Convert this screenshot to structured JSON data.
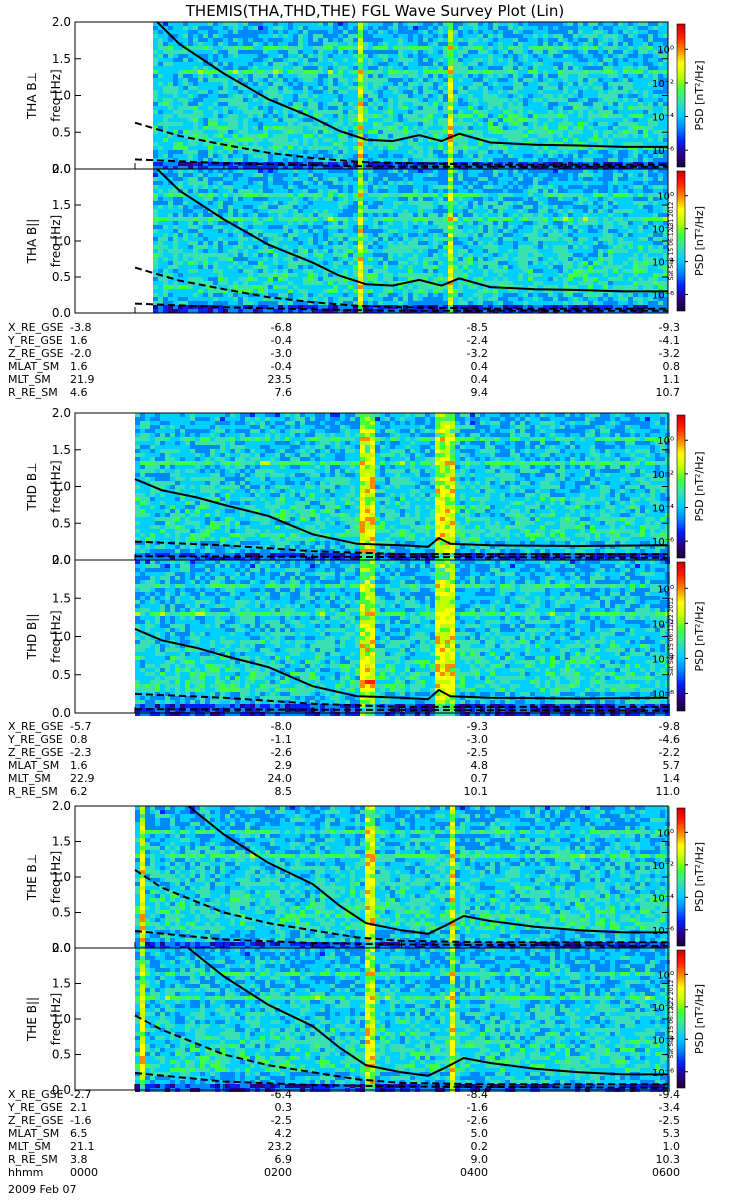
{
  "title": "THEMIS(THA,THD,THE) FGL Wave Survey Plot (Lin)",
  "colors": {
    "colormap": [
      "#1a0033",
      "#2a008c",
      "#0022ff",
      "#0088ff",
      "#00d0ff",
      "#3ae0b0",
      "#40ff40",
      "#c0ff00",
      "#ffff00",
      "#ff8800",
      "#ff2000",
      "#cc0000"
    ],
    "curve": "#000000",
    "background": "#ffffff"
  },
  "chart_data": [
    {
      "type": "heatmap",
      "panel": "THA Bperp",
      "ylabel": "THA B⊥",
      "ylabel2": "freq [Hz]",
      "ylim": [
        0.0,
        2.0
      ],
      "yticks": [
        "0.0",
        "0.5",
        "1.0",
        "1.5",
        "2.0"
      ],
      "colorbar_label": "PSD [nT²/Hz]",
      "colorbar_ticks": [
        "10⁰",
        "10⁻²",
        "10⁻⁴",
        "10⁻⁶"
      ],
      "colorbar_range_log10": [
        -7,
        1.5
      ],
      "data_start_hour": 0.2,
      "bursts": [
        [
          2.5,
          2.56
        ],
        [
          3.48,
          3.55
        ]
      ],
      "solid_curve": [
        [
          0.25,
          2.0
        ],
        [
          0.5,
          1.7
        ],
        [
          1.0,
          1.3
        ],
        [
          1.5,
          0.95
        ],
        [
          2.0,
          0.7
        ],
        [
          2.3,
          0.52
        ],
        [
          2.6,
          0.4
        ],
        [
          2.9,
          0.38
        ],
        [
          3.2,
          0.46
        ],
        [
          3.45,
          0.38
        ],
        [
          3.65,
          0.48
        ],
        [
          4.0,
          0.36
        ],
        [
          4.5,
          0.33
        ],
        [
          5.0,
          0.32
        ],
        [
          5.5,
          0.3
        ],
        [
          6.0,
          0.3
        ]
      ],
      "dashed_curve": [
        [
          0.0,
          0.63
        ],
        [
          0.5,
          0.45
        ],
        [
          1.0,
          0.33
        ],
        [
          1.5,
          0.22
        ],
        [
          2.0,
          0.15
        ],
        [
          2.5,
          0.1
        ],
        [
          3.0,
          0.08
        ],
        [
          4.0,
          0.06
        ],
        [
          6.0,
          0.06
        ]
      ],
      "dashed_low": [
        [
          0.0,
          0.13
        ],
        [
          1.0,
          0.08
        ],
        [
          2.0,
          0.05
        ],
        [
          3.0,
          0.03
        ],
        [
          6.0,
          0.03
        ]
      ]
    },
    {
      "type": "heatmap",
      "panel": "THA Bpar",
      "ylabel": "THA B||",
      "ylabel2": "freq [Hz]",
      "ylim": [
        0.0,
        2.0
      ],
      "yticks": [
        "0.0",
        "0.5",
        "1.0",
        "1.5",
        "2.0"
      ],
      "colorbar_label": "PSD [nT²/Hz]",
      "colorbar_ticks": [
        "10⁰",
        "10⁻²",
        "10⁻⁴",
        "10⁻⁶"
      ],
      "colorbar_range_log10": [
        -7,
        1.5
      ],
      "data_start_hour": 0.2,
      "bursts": [
        [
          2.5,
          2.56
        ],
        [
          3.48,
          3.55
        ]
      ],
      "solid_curve": [
        [
          0.25,
          2.0
        ],
        [
          0.5,
          1.7
        ],
        [
          1.0,
          1.3
        ],
        [
          1.5,
          0.95
        ],
        [
          2.0,
          0.7
        ],
        [
          2.3,
          0.52
        ],
        [
          2.6,
          0.4
        ],
        [
          2.9,
          0.38
        ],
        [
          3.2,
          0.46
        ],
        [
          3.45,
          0.38
        ],
        [
          3.65,
          0.48
        ],
        [
          4.0,
          0.36
        ],
        [
          4.5,
          0.33
        ],
        [
          5.0,
          0.32
        ],
        [
          5.5,
          0.3
        ],
        [
          6.0,
          0.3
        ]
      ],
      "dashed_curve": [
        [
          0.0,
          0.63
        ],
        [
          0.5,
          0.45
        ],
        [
          1.0,
          0.33
        ],
        [
          1.5,
          0.22
        ],
        [
          2.0,
          0.15
        ],
        [
          2.5,
          0.1
        ],
        [
          3.0,
          0.08
        ],
        [
          4.0,
          0.06
        ],
        [
          6.0,
          0.06
        ]
      ],
      "dashed_low": [
        [
          0.0,
          0.13
        ],
        [
          1.0,
          0.08
        ],
        [
          2.0,
          0.05
        ],
        [
          3.0,
          0.03
        ],
        [
          6.0,
          0.03
        ]
      ],
      "timestamp": "Sat Sep 15 06:12:31 2012"
    },
    {
      "type": "heatmap",
      "panel": "THD Bperp",
      "ylabel": "THD B⊥",
      "ylabel2": "freq [Hz]",
      "ylim": [
        0.0,
        2.0
      ],
      "yticks": [
        "0.0",
        "0.5",
        "1.0",
        "1.5",
        "2.0"
      ],
      "colorbar_label": "PSD [nT²/Hz]",
      "colorbar_ticks": [
        "10⁰",
        "10⁻²",
        "10⁻⁴",
        "10⁻⁶"
      ],
      "colorbar_range_log10": [
        -7,
        1.5
      ],
      "data_start_hour": 0.0,
      "bursts": [
        [
          2.52,
          2.66
        ],
        [
          3.35,
          3.55
        ]
      ],
      "solid_curve": [
        [
          0.0,
          1.1
        ],
        [
          0.3,
          0.95
        ],
        [
          0.7,
          0.85
        ],
        [
          1.0,
          0.75
        ],
        [
          1.5,
          0.6
        ],
        [
          2.0,
          0.35
        ],
        [
          2.5,
          0.22
        ],
        [
          3.0,
          0.2
        ],
        [
          3.3,
          0.18
        ],
        [
          3.42,
          0.3
        ],
        [
          3.55,
          0.22
        ],
        [
          4.0,
          0.2
        ],
        [
          5.0,
          0.19
        ],
        [
          6.0,
          0.2
        ]
      ],
      "dashed_curve": [
        [
          0.0,
          0.25
        ],
        [
          1.0,
          0.2
        ],
        [
          2.0,
          0.12
        ],
        [
          3.0,
          0.08
        ],
        [
          6.0,
          0.08
        ]
      ],
      "dashed_low": [
        [
          0.0,
          0.05
        ],
        [
          6.0,
          0.03
        ]
      ]
    },
    {
      "type": "heatmap",
      "panel": "THD Bpar",
      "ylabel": "THD B||",
      "ylabel2": "freq [Hz]",
      "ylim": [
        0.0,
        2.0
      ],
      "yticks": [
        "0.0",
        "0.5",
        "1.0",
        "1.5",
        "2.0"
      ],
      "colorbar_label": "PSD [nT²/Hz]",
      "colorbar_ticks": [
        "10⁰",
        "10⁻²",
        "10⁻⁴",
        "10⁻⁶"
      ],
      "colorbar_range_log10": [
        -7,
        1.5
      ],
      "data_start_hour": 0.0,
      "bursts": [
        [
          2.52,
          2.66
        ],
        [
          3.35,
          3.55
        ]
      ],
      "solid_curve": [
        [
          0.0,
          1.1
        ],
        [
          0.3,
          0.95
        ],
        [
          0.7,
          0.85
        ],
        [
          1.0,
          0.75
        ],
        [
          1.5,
          0.6
        ],
        [
          2.0,
          0.35
        ],
        [
          2.5,
          0.22
        ],
        [
          3.0,
          0.2
        ],
        [
          3.3,
          0.18
        ],
        [
          3.42,
          0.3
        ],
        [
          3.55,
          0.22
        ],
        [
          4.0,
          0.2
        ],
        [
          5.0,
          0.19
        ],
        [
          6.0,
          0.2
        ]
      ],
      "dashed_curve": [
        [
          0.0,
          0.25
        ],
        [
          1.0,
          0.2
        ],
        [
          2.0,
          0.12
        ],
        [
          3.0,
          0.08
        ],
        [
          6.0,
          0.08
        ]
      ],
      "dashed_low": [
        [
          0.0,
          0.05
        ],
        [
          6.0,
          0.03
        ]
      ],
      "timestamp": "Sat Sep 15 06:12:22 2012"
    },
    {
      "type": "heatmap",
      "panel": "THE Bperp",
      "ylabel": "THE B⊥",
      "ylabel2": "freq [Hz]",
      "ylim": [
        0.0,
        2.0
      ],
      "yticks": [
        "0.0",
        "0.5",
        "1.0",
        "1.5",
        "2.0"
      ],
      "colorbar_label": "PSD [nT²/Hz]",
      "colorbar_ticks": [
        "10⁰",
        "10⁻²",
        "10⁻⁴",
        "10⁻⁶"
      ],
      "colorbar_range_log10": [
        -7,
        1.5
      ],
      "data_start_hour": 0.0,
      "bursts": [
        [
          0.02,
          0.1
        ],
        [
          2.58,
          2.65
        ],
        [
          3.5,
          3.58
        ]
      ],
      "solid_curve": [
        [
          0.6,
          2.0
        ],
        [
          1.0,
          1.6
        ],
        [
          1.5,
          1.2
        ],
        [
          2.0,
          0.9
        ],
        [
          2.3,
          0.6
        ],
        [
          2.6,
          0.35
        ],
        [
          3.0,
          0.25
        ],
        [
          3.3,
          0.2
        ],
        [
          3.5,
          0.32
        ],
        [
          3.7,
          0.45
        ],
        [
          4.0,
          0.38
        ],
        [
          4.5,
          0.3
        ],
        [
          5.0,
          0.25
        ],
        [
          5.5,
          0.22
        ],
        [
          6.0,
          0.22
        ]
      ],
      "dashed_curve": [
        [
          0.0,
          1.1
        ],
        [
          0.3,
          0.85
        ],
        [
          0.7,
          0.65
        ],
        [
          1.0,
          0.5
        ],
        [
          1.5,
          0.35
        ],
        [
          2.0,
          0.25
        ],
        [
          2.5,
          0.15
        ],
        [
          3.0,
          0.1
        ],
        [
          4.0,
          0.08
        ],
        [
          6.0,
          0.08
        ]
      ],
      "dashed_low": [
        [
          0.0,
          0.24
        ],
        [
          1.0,
          0.12
        ],
        [
          2.0,
          0.07
        ],
        [
          3.0,
          0.05
        ],
        [
          6.0,
          0.03
        ]
      ]
    },
    {
      "type": "heatmap",
      "panel": "THE Bpar",
      "ylabel": "THE B||",
      "ylabel2": "freq [Hz]",
      "ylim": [
        0.0,
        2.0
      ],
      "yticks": [
        "0.0",
        "0.5",
        "1.0",
        "1.5",
        "2.0"
      ],
      "colorbar_label": "PSD [nT²/Hz]",
      "colorbar_ticks": [
        "10⁰",
        "10⁻²",
        "10⁻⁴",
        "10⁻⁶"
      ],
      "colorbar_range_log10": [
        -7,
        1.5
      ],
      "data_start_hour": 0.0,
      "bursts": [
        [
          0.02,
          0.1
        ],
        [
          2.58,
          2.65
        ],
        [
          3.5,
          3.58
        ]
      ],
      "solid_curve": [
        [
          0.6,
          2.0
        ],
        [
          1.0,
          1.6
        ],
        [
          1.5,
          1.2
        ],
        [
          2.0,
          0.9
        ],
        [
          2.3,
          0.6
        ],
        [
          2.6,
          0.35
        ],
        [
          3.0,
          0.25
        ],
        [
          3.3,
          0.2
        ],
        [
          3.5,
          0.32
        ],
        [
          3.7,
          0.45
        ],
        [
          4.0,
          0.38
        ],
        [
          4.5,
          0.3
        ],
        [
          5.0,
          0.25
        ],
        [
          5.5,
          0.22
        ],
        [
          6.0,
          0.22
        ]
      ],
      "dashed_curve": [
        [
          0.0,
          1.05
        ],
        [
          0.3,
          0.85
        ],
        [
          0.7,
          0.65
        ],
        [
          1.0,
          0.5
        ],
        [
          1.5,
          0.35
        ],
        [
          2.0,
          0.25
        ],
        [
          2.5,
          0.15
        ],
        [
          3.0,
          0.1
        ],
        [
          4.0,
          0.08
        ],
        [
          6.0,
          0.08
        ]
      ],
      "dashed_low": [
        [
          0.0,
          0.24
        ],
        [
          1.0,
          0.12
        ],
        [
          2.0,
          0.07
        ],
        [
          3.0,
          0.05
        ],
        [
          6.0,
          0.03
        ]
      ],
      "timestamp": "Sat Sep 15 06:12:22 2012"
    }
  ],
  "ephemeris": [
    {
      "probe": "THA",
      "rows": [
        {
          "label": "X_RE_GSE",
          "values": [
            "-3.8",
            "-6.8",
            "-8.5",
            "-9.3"
          ]
        },
        {
          "label": "Y_RE_GSE",
          "values": [
            "1.6",
            "-0.4",
            "-2.4",
            "-4.1"
          ]
        },
        {
          "label": "Z_RE_GSE",
          "values": [
            "-2.0",
            "-3.0",
            "-3.2",
            "-3.2"
          ]
        },
        {
          "label": "MLAT_SM",
          "values": [
            "1.6",
            "-0.4",
            "0.4",
            "0.8"
          ]
        },
        {
          "label": "MLT_SM",
          "values": [
            "21.9",
            "23.5",
            "0.4",
            "1.1"
          ]
        },
        {
          "label": "R_RE_SM",
          "values": [
            "4.6",
            "7.6",
            "9.4",
            "10.7"
          ]
        }
      ]
    },
    {
      "probe": "THD",
      "rows": [
        {
          "label": "X_RE_GSE",
          "values": [
            "-5.7",
            "-8.0",
            "-9.3",
            "-9.8"
          ]
        },
        {
          "label": "Y_RE_GSE",
          "values": [
            "0.8",
            "-1.1",
            "-3.0",
            "-4.6"
          ]
        },
        {
          "label": "Z_RE_GSE",
          "values": [
            "-2.3",
            "-2.6",
            "-2.5",
            "-2.2"
          ]
        },
        {
          "label": "MLAT_SM",
          "values": [
            "1.6",
            "2.9",
            "4.8",
            "5.7"
          ]
        },
        {
          "label": "MLT_SM",
          "values": [
            "22.9",
            "24.0",
            "0.7",
            "1.4"
          ]
        },
        {
          "label": "R_RE_SM",
          "values": [
            "6.2",
            "8.5",
            "10.1",
            "11.0"
          ]
        }
      ]
    },
    {
      "probe": "THE",
      "rows": [
        {
          "label": "X_RE_GSE",
          "values": [
            "-2.7",
            "-6.4",
            "-8.4",
            "-9.4"
          ]
        },
        {
          "label": "Y_RE_GSE",
          "values": [
            "2.1",
            "0.3",
            "-1.6",
            "-3.4"
          ]
        },
        {
          "label": "Z_RE_GSE",
          "values": [
            "-1.6",
            "-2.5",
            "-2.6",
            "-2.5"
          ]
        },
        {
          "label": "MLAT_SM",
          "values": [
            "6.5",
            "4.2",
            "5.0",
            "5.3"
          ]
        },
        {
          "label": "MLT_SM",
          "values": [
            "21.1",
            "23.2",
            "0.2",
            "1.0"
          ]
        },
        {
          "label": "R_RE_SM",
          "values": [
            "3.8",
            "6.9",
            "9.0",
            "10.3"
          ]
        },
        {
          "label": "hhmm",
          "values": [
            "0000",
            "0200",
            "0400",
            "0600"
          ]
        }
      ]
    }
  ],
  "date": "2009 Feb 07"
}
